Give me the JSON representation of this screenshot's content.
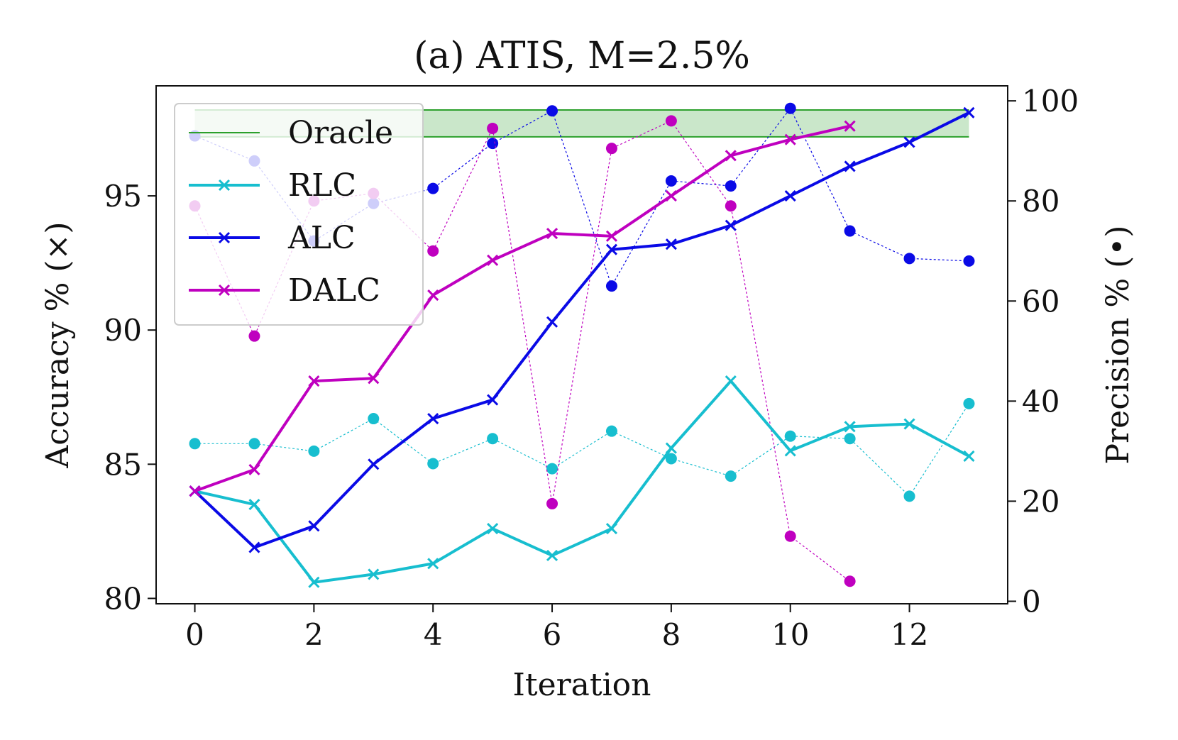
{
  "chart_data": {
    "type": "line",
    "title": "(a) ATIS, M=2.5%",
    "xlabel": "Iteration",
    "ylabel": "Accuracy % (×)",
    "y2label": "Precision % (•)",
    "xlim": [
      -0.65,
      13.65
    ],
    "ylim": [
      79.8,
      99.1
    ],
    "y2lim": [
      -0.5,
      103
    ],
    "xticks": [
      0,
      2,
      4,
      6,
      8,
      10,
      12
    ],
    "yticks": [
      80,
      85,
      90,
      95
    ],
    "y2ticks": [
      0,
      20,
      40,
      60,
      80,
      100
    ],
    "legend_position": "top-left",
    "oracle": {
      "name": "Oracle",
      "x_range": [
        0,
        13
      ],
      "accuracy_band": [
        97.2,
        98.2
      ],
      "color": "#2ca02c"
    },
    "series": [
      {
        "name": "RLC",
        "color": "#17becf",
        "accuracy_x": [
          0,
          1,
          2,
          3,
          4,
          5,
          6,
          7,
          8,
          9,
          10,
          11,
          12,
          13
        ],
        "accuracy": [
          84.0,
          83.5,
          80.6,
          80.9,
          81.3,
          82.6,
          81.6,
          82.6,
          85.6,
          88.1,
          85.5,
          86.4,
          86.5,
          85.3
        ],
        "precision_x": [
          0,
          1,
          2,
          3,
          4,
          5,
          6,
          7,
          8,
          9,
          10,
          11,
          12,
          13
        ],
        "precision": [
          31.5,
          31.5,
          30.0,
          36.5,
          27.5,
          32.5,
          26.5,
          34.0,
          28.5,
          25.0,
          33.0,
          32.5,
          21.0,
          39.5
        ]
      },
      {
        "name": "ALC",
        "color": "#0a0ae6",
        "accuracy_x": [
          0,
          1,
          2,
          3,
          4,
          5,
          6,
          7,
          8,
          9,
          10,
          11,
          12,
          13
        ],
        "accuracy": [
          84.0,
          81.9,
          82.7,
          85.0,
          86.7,
          87.4,
          90.3,
          93.0,
          93.2,
          93.9,
          95.0,
          96.1,
          97.0,
          98.1
        ],
        "precision_x": [
          0,
          1,
          2,
          3,
          4,
          5,
          6,
          7,
          8,
          9,
          10,
          11,
          12,
          13
        ],
        "precision": [
          93.0,
          88.0,
          72.0,
          79.5,
          82.5,
          91.5,
          98.0,
          63.0,
          84.0,
          83.0,
          98.5,
          74.0,
          68.5,
          68.0
        ]
      },
      {
        "name": "DALC",
        "color": "#bf00bf",
        "accuracy_x": [
          0,
          1,
          2,
          3,
          4,
          5,
          6,
          7,
          8,
          9,
          10,
          11
        ],
        "accuracy": [
          84.0,
          84.8,
          88.1,
          88.2,
          91.3,
          92.6,
          93.6,
          93.5,
          95.0,
          96.5,
          97.1,
          97.6
        ],
        "precision_x": [
          0,
          1,
          2,
          3,
          4,
          5,
          6,
          7,
          8,
          9,
          10,
          11
        ],
        "precision": [
          79.0,
          53.0,
          80.0,
          81.5,
          70.0,
          94.5,
          19.5,
          90.5,
          96.0,
          79.0,
          13.0,
          4.0
        ]
      }
    ]
  }
}
